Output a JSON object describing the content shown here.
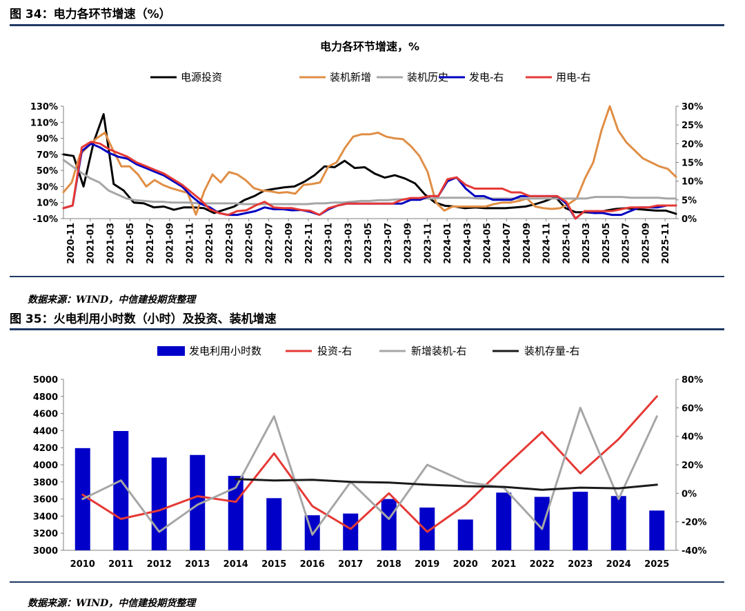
{
  "figures": [
    {
      "label": "图 34：电力各环节增速（%）",
      "source": "数据来源：WIND，中信建投期货整理"
    },
    {
      "label": "图 35：火电利用小时数（小时）及投资、装机增速",
      "source": "数据来源：WIND，中信建投期货整理"
    }
  ],
  "chart_data": [
    {
      "type": "line",
      "title": "电力各环节增速，%",
      "x_ticks": [
        "2020-11",
        "2021-01",
        "2021-03",
        "2021-05",
        "2021-07",
        "2021-09",
        "2021-11",
        "2022-01",
        "2022-03",
        "2022-05",
        "2022-07",
        "2022-09",
        "2022-11",
        "2023-01",
        "2023-03",
        "2023-05",
        "2023-07",
        "2023-09",
        "2023-11",
        "2024-01",
        "2024-03",
        "2024-05",
        "2024-07",
        "2024-09",
        "2024-11",
        "2025-01",
        "2025-03",
        "2025-05",
        "2025-07",
        "2025-09",
        "2025-11"
      ],
      "y_left_ticks": [
        "130%",
        "110%",
        "90%",
        "70%",
        "50%",
        "30%",
        "10%",
        "-10%"
      ],
      "y_right_ticks": [
        "30%",
        "25%",
        "20%",
        "15%",
        "10%",
        "5%",
        "0%"
      ],
      "y_left_range": [
        -10,
        130
      ],
      "y_right_range": [
        0,
        30
      ],
      "legend_position": "top",
      "series": [
        {
          "name": "电源投资",
          "axis": "left",
          "color": "#000000",
          "values": [
            70,
            68,
            30,
            85,
            120,
            33,
            25,
            10,
            9,
            4,
            5,
            1,
            4,
            4,
            3,
            -3,
            1,
            5,
            13,
            18,
            25,
            27,
            29,
            30,
            36,
            44,
            55,
            54,
            62,
            53,
            54,
            46,
            41,
            44,
            40,
            34,
            20,
            10,
            6,
            5,
            3,
            4,
            3,
            3,
            3,
            4,
            5,
            8,
            12,
            17,
            3,
            -2,
            -2,
            -3,
            0,
            2,
            3,
            2,
            1,
            0,
            0,
            -4
          ]
        },
        {
          "name": "装机新增",
          "axis": "left",
          "color": "#e08e45",
          "values": [
            23,
            35,
            70,
            80,
            90,
            97,
            75,
            55,
            55,
            45,
            30,
            38,
            32,
            28,
            25,
            22,
            -5,
            24,
            45,
            35,
            48,
            45,
            38,
            28,
            25,
            24,
            22,
            23,
            21,
            32,
            33,
            35,
            55,
            60,
            78,
            92,
            95,
            95,
            97,
            92,
            90,
            89,
            80,
            68,
            48,
            10,
            0,
            5,
            5,
            5,
            5,
            5,
            8,
            10,
            10,
            12,
            15,
            5,
            3,
            2,
            3,
            8,
            15,
            40,
            60,
            100,
            130,
            100,
            85,
            75,
            65,
            60,
            55,
            52,
            42
          ]
        },
        {
          "name": "装机历史",
          "axis": "left",
          "color": "#a6a6a6",
          "values": [
            63,
            55,
            47,
            40,
            35,
            25,
            20,
            15,
            13,
            12,
            11,
            11,
            10,
            10,
            10,
            9,
            9,
            9,
            9,
            9,
            8,
            8,
            8,
            8,
            8,
            8,
            8,
            8,
            9,
            9,
            10,
            10,
            11,
            12,
            12,
            13,
            13,
            14,
            14,
            14,
            15,
            15,
            16,
            16,
            16,
            16,
            15,
            15,
            15,
            15,
            15,
            15,
            15,
            15,
            15,
            15,
            15,
            15,
            15,
            17,
            17,
            17,
            17,
            16,
            16,
            16,
            16,
            15,
            15
          ]
        },
        {
          "name": "发电-右",
          "axis": "right",
          "color": "#0000c0",
          "values": [
            2.8,
            3.5,
            18,
            20,
            19,
            17.5,
            16.5,
            16,
            14.5,
            13.5,
            12.5,
            11.5,
            10,
            8.5,
            6,
            4,
            3,
            1.5,
            1,
            1,
            1.5,
            2,
            3,
            2.5,
            2.5,
            2.2,
            2.3,
            1.8,
            1,
            2.5,
            3.5,
            4,
            4,
            4,
            4,
            4,
            4,
            4,
            5,
            5,
            6,
            6,
            10,
            11,
            8,
            6,
            6,
            5,
            5,
            5,
            6,
            6,
            6,
            6,
            6,
            4,
            0,
            2,
            1.5,
            1.5,
            1,
            1,
            2,
            3,
            3,
            3,
            3.5,
            3.5
          ]
        },
        {
          "name": "用电-右",
          "axis": "right",
          "color": "#e53935",
          "values": [
            2.8,
            3.5,
            19,
            20.5,
            20,
            18.5,
            17.5,
            16.5,
            15,
            14,
            13,
            12,
            10.5,
            9,
            7,
            5,
            2.5,
            1.5,
            1,
            2,
            2.2,
            3.5,
            4.5,
            3,
            2.8,
            2.8,
            2.3,
            2.1,
            1,
            2.8,
            3.5,
            4,
            4,
            4,
            4,
            4,
            4,
            5,
            5.5,
            5.5,
            6,
            6,
            10.5,
            11,
            9,
            8,
            8,
            8,
            8,
            7,
            7,
            6,
            6,
            6,
            6,
            4.5,
            0,
            2,
            2,
            2,
            2,
            2.5,
            3,
            3,
            3,
            3.5,
            3.5,
            3.5
          ]
        }
      ]
    },
    {
      "type": "bar",
      "categories": [
        "2010",
        "2011",
        "2012",
        "2013",
        "2014",
        "2015",
        "2016",
        "2017",
        "2018",
        "2019",
        "2020",
        "2021",
        "2022",
        "2023",
        "2024",
        "2025"
      ],
      "y_left_ticks": [
        "5000",
        "4800",
        "4600",
        "4400",
        "4200",
        "4000",
        "3800",
        "3600",
        "3400",
        "3200",
        "3000"
      ],
      "y_right_ticks": [
        "80%",
        "60%",
        "40%",
        "20%",
        "0%",
        "-20%",
        "-40%"
      ],
      "y_left_range": [
        3000,
        5000
      ],
      "y_right_range": [
        -40,
        80
      ],
      "legend_position": "top",
      "series": [
        {
          "name": "发电利用小时数",
          "kind": "bar",
          "axis": "left",
          "color": "#0000c8",
          "values": [
            4195,
            4395,
            4085,
            4115,
            3870,
            3610,
            3410,
            3430,
            3600,
            3500,
            3360,
            3675,
            3625,
            3685,
            3635,
            3465
          ]
        },
        {
          "name": "投资-右",
          "kind": "line",
          "axis": "right",
          "color": "#e53935",
          "values": [
            -1,
            -18,
            -12,
            -2,
            -6,
            28,
            -9,
            -25,
            0,
            -27,
            -8,
            18,
            43,
            14,
            38,
            68
          ]
        },
        {
          "name": "新增装机-右",
          "kind": "line",
          "axis": "right",
          "color": "#a6a6a6",
          "values": [
            -4,
            9,
            -27,
            -8,
            4,
            54,
            -29,
            8,
            -18,
            20,
            8,
            4,
            -25,
            60,
            -4,
            54
          ]
        },
        {
          "name": "装机存量-右",
          "kind": "line",
          "axis": "right",
          "color": "#1a1a1a",
          "values": [
            null,
            null,
            null,
            null,
            10,
            9,
            9.5,
            8,
            7.5,
            6,
            5,
            4.5,
            2.5,
            4,
            3.5,
            6
          ]
        }
      ]
    }
  ]
}
